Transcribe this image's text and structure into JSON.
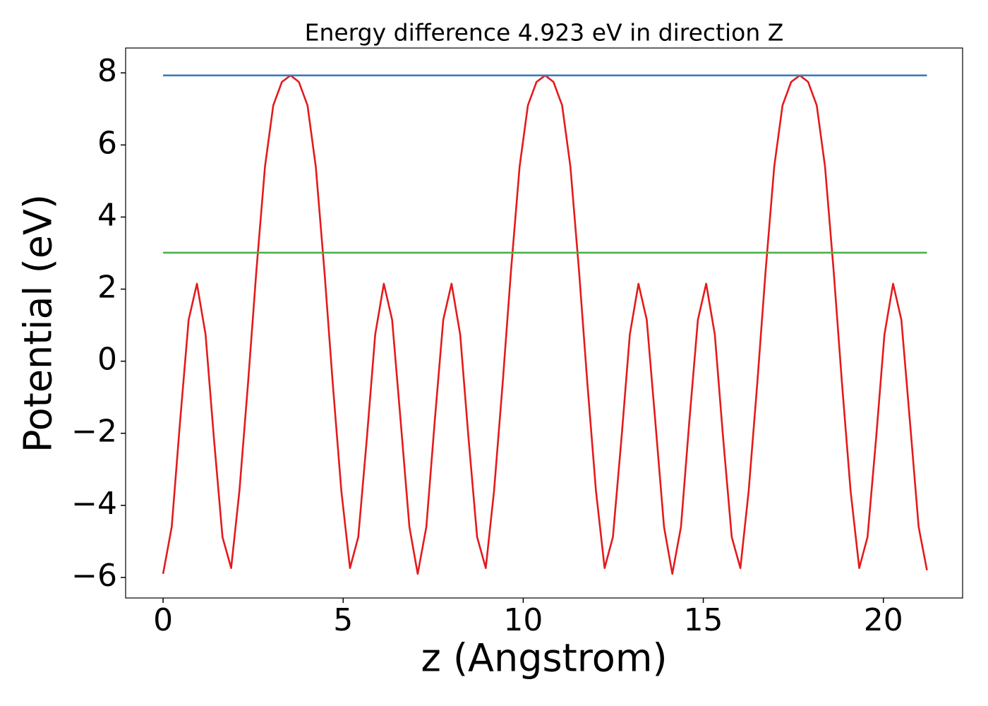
{
  "chart_data": {
    "type": "line",
    "title": "Energy difference 4.923 eV in direction Z",
    "xlabel": "z (Angstrom)",
    "ylabel": "Potential (eV)",
    "xlim": [
      -1.04,
      22.2
    ],
    "ylim": [
      -6.57,
      8.69
    ],
    "xticks": [
      0,
      5,
      10,
      15,
      20
    ],
    "yticks": [
      {
        "value": -6,
        "label": "−6"
      },
      {
        "value": -4,
        "label": "−4"
      },
      {
        "value": -2,
        "label": "−2"
      },
      0,
      2,
      4,
      6,
      8
    ],
    "grid": false,
    "series": [
      {
        "color": "#e41a1c",
        "x": [
          0,
          0.24,
          0.47,
          0.71,
          0.94,
          1.18,
          1.41,
          1.65,
          1.89,
          2.12,
          2.36,
          2.59,
          2.83,
          3.06,
          3.3,
          3.54,
          3.77,
          4.01,
          4.24,
          4.48,
          4.71,
          4.95,
          5.19,
          5.42,
          5.66,
          5.89,
          6.13,
          6.36,
          6.6,
          6.84,
          7.07,
          7.31,
          7.54,
          7.78,
          8.01,
          8.25,
          8.48,
          8.72,
          8.96,
          9.19,
          9.43,
          9.66,
          9.9,
          10.13,
          10.37,
          10.61,
          10.84,
          11.08,
          11.31,
          11.55,
          11.78,
          12.02,
          12.26,
          12.49,
          12.73,
          12.96,
          13.2,
          13.43,
          13.67,
          13.91,
          14.14,
          14.38,
          14.61,
          14.85,
          15.08,
          15.32,
          15.55,
          15.79,
          16.03,
          16.26,
          16.5,
          16.73,
          16.97,
          17.2,
          17.44,
          17.68,
          17.91,
          18.15,
          18.38,
          18.62,
          18.85,
          19.09,
          19.33,
          19.56,
          19.8,
          20.03,
          20.27,
          20.5,
          20.74,
          20.98,
          21.21
        ],
        "values": [
          -5.9,
          -4.6,
          -1.7,
          1.15,
          2.15,
          0.74,
          -2.12,
          -4.88,
          -5.74,
          -3.6,
          -0.6,
          2.5,
          5.4,
          7.1,
          7.75,
          7.93,
          7.75,
          7.1,
          5.4,
          2.5,
          -0.6,
          -3.6,
          -5.74,
          -4.88,
          -2.12,
          0.74,
          2.15,
          1.15,
          -1.7,
          -4.6,
          -5.9,
          -4.6,
          -1.7,
          1.15,
          2.15,
          0.74,
          -2.12,
          -4.88,
          -5.74,
          -3.6,
          -0.6,
          2.5,
          5.4,
          7.1,
          7.75,
          7.93,
          7.75,
          7.1,
          5.4,
          2.5,
          -0.6,
          -3.6,
          -5.74,
          -4.88,
          -2.12,
          0.74,
          2.15,
          1.15,
          -1.7,
          -4.6,
          -5.9,
          -4.6,
          -1.7,
          1.15,
          2.15,
          0.74,
          -2.12,
          -4.88,
          -5.74,
          -3.6,
          -0.6,
          2.5,
          5.4,
          7.1,
          7.75,
          7.93,
          7.75,
          7.1,
          5.4,
          2.5,
          -0.6,
          -3.6,
          -5.74,
          -4.88,
          -2.12,
          0.74,
          2.15,
          1.15,
          -1.7,
          -4.6,
          -5.8
        ]
      },
      {
        "color": "#377eb8",
        "x": [
          0,
          21.21
        ],
        "values": [
          7.93,
          7.93
        ]
      },
      {
        "color": "#4daf4a",
        "x": [
          0,
          21.21
        ],
        "values": [
          3.01,
          3.01
        ]
      }
    ]
  }
}
